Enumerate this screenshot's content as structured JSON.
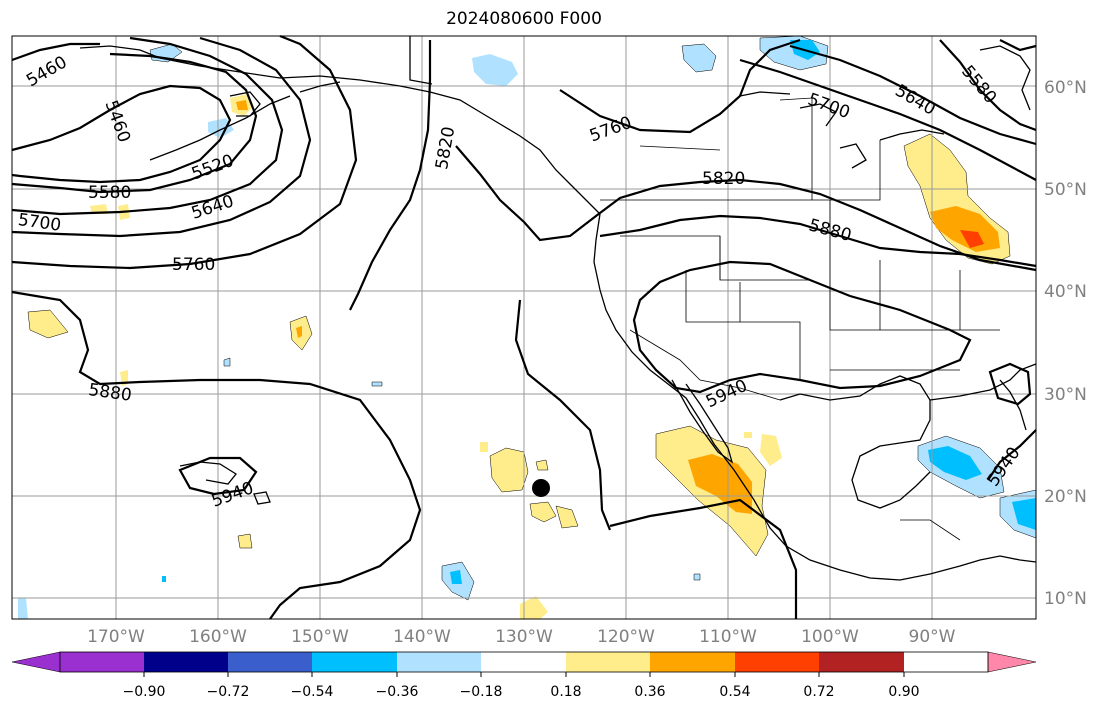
{
  "title": "2024080600 F000",
  "lat_labels": [
    "10°N",
    "20°N",
    "30°N",
    "40°N",
    "50°N",
    "60°N"
  ],
  "lon_labels": [
    "170°W",
    "160°W",
    "150°W",
    "140°W",
    "130°W",
    "120°W",
    "110°W",
    "100°W",
    "90°W"
  ],
  "contour_labels": [
    "5460",
    "5460",
    "5520",
    "5580",
    "5640",
    "5700",
    "5760",
    "5820",
    "5820",
    "5760",
    "5700",
    "5640",
    "5580",
    "5880",
    "5880",
    "5940",
    "5940",
    "5940"
  ],
  "colorbar": {
    "ticks": [
      "−0.90",
      "−0.72",
      "−0.54",
      "−0.36",
      "−0.18",
      "0.18",
      "0.36",
      "0.54",
      "0.72",
      "0.90"
    ],
    "colors": [
      "#9b30d0",
      "#00008b",
      "#3a5fcd",
      "#00bfff",
      "#b0e2ff",
      "#ffffff",
      "#ffec8b",
      "#ffa500",
      "#ff4000",
      "#b22222",
      "#ff88aa"
    ]
  },
  "marker": "storm-center-dot"
}
